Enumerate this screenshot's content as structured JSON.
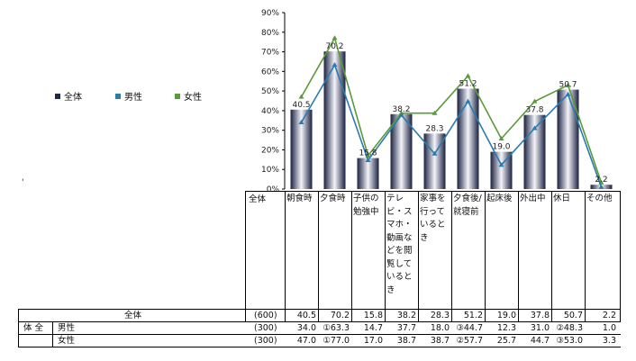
{
  "chart_data": {
    "type": "bar",
    "categories": [
      "朝食時",
      "夕食時",
      "子供の勉強中",
      "テレビ・スマホ・動画などを閲覧しているとき",
      "家事を行っているとき",
      "夕食後/就寝前",
      "起床後",
      "外出中",
      "休日",
      "その他"
    ],
    "category_labels": [
      "朝食時",
      "夕食時",
      "子供の勉強中",
      "テレビ・スマホ・動画などを閲覧しているとき",
      "家事を行っているとき",
      "夕食後/就寝前",
      "起床後",
      "外出中",
      "休日",
      "その他"
    ],
    "series": [
      {
        "name": "全体",
        "kind": "bar",
        "values": [
          40.5,
          70.2,
          15.8,
          38.2,
          28.3,
          51.2,
          19.0,
          37.8,
          50.7,
          2.2
        ],
        "color": "#1f2a4a"
      },
      {
        "name": "男性",
        "kind": "line",
        "values": [
          34.0,
          63.3,
          14.7,
          37.7,
          18.0,
          44.7,
          12.3,
          31.0,
          48.3,
          1.0
        ],
        "color": "#2a7bb0"
      },
      {
        "name": "女性",
        "kind": "line",
        "values": [
          47.0,
          77.0,
          17.0,
          38.7,
          38.7,
          57.7,
          25.7,
          44.7,
          53.0,
          3.3
        ],
        "color": "#5a9a3a"
      }
    ],
    "data_labels": [
      "40.5",
      "70.2",
      "15.8",
      "38.2",
      "28.3",
      "51.2",
      "19.0",
      "37.8",
      "50.7",
      "2.2"
    ],
    "yticks": [
      "0%",
      "10%",
      "20%",
      "30%",
      "40%",
      "50%",
      "60%",
      "70%",
      "80%",
      "90%"
    ],
    "ylim": [
      0,
      90
    ],
    "legend_position": "left"
  },
  "table": {
    "header_total": "全体",
    "rows": [
      {
        "group": "",
        "label": "全体",
        "n": "(600)",
        "cells": [
          "40.5",
          "70.2",
          "15.8",
          "38.2",
          "28.3",
          "51.2",
          "19.0",
          "37.8",
          "50.7",
          "2.2"
        ]
      },
      {
        "group": "体 全",
        "label": "男性",
        "n": "(300)",
        "cells": [
          "34.0",
          "①63.3",
          "14.7",
          "37.7",
          "18.0",
          "③44.7",
          "12.3",
          "31.0",
          "②48.3",
          "1.0"
        ]
      },
      {
        "group": "",
        "label": "女性",
        "n": "(300)",
        "cells": [
          "47.0",
          "①77.0",
          "17.0",
          "38.7",
          "38.7",
          "②57.7",
          "25.7",
          "44.7",
          "③53.0",
          "3.3"
        ]
      }
    ]
  },
  "page": {
    "stray_mark": "'"
  }
}
